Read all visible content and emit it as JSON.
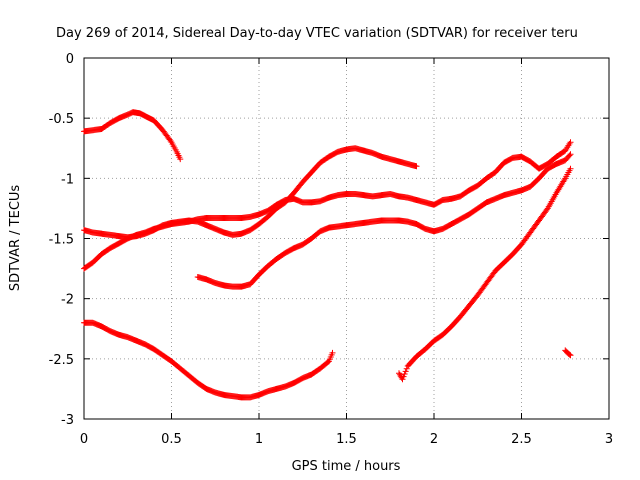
{
  "chart_data": {
    "type": "scatter",
    "title": "Day 269 of 2014, Sidereal Day-to-day VTEC variation (SDTVAR) for receiver teru",
    "xlabel": "GPS time / hours",
    "ylabel": "SDTVAR / TECUs",
    "xlim": [
      0,
      3
    ],
    "ylim": [
      -3,
      0
    ],
    "xticks": [
      "0",
      "0.5",
      "1",
      "1.5",
      "2",
      "2.5",
      "3"
    ],
    "yticks": [
      "0",
      "-0.5",
      "-1",
      "-1.5",
      "-2",
      "-2.5",
      "-3"
    ],
    "grid": true,
    "marker": "+",
    "color": "#ff0000",
    "series": [
      {
        "segments": [
          [
            [
              0.0,
              -0.61
            ],
            [
              0.05,
              -0.6
            ],
            [
              0.1,
              -0.59
            ],
            [
              0.15,
              -0.54
            ],
            [
              0.2,
              -0.5
            ],
            [
              0.25,
              -0.47
            ],
            [
              0.28,
              -0.45
            ],
            [
              0.32,
              -0.46
            ],
            [
              0.36,
              -0.49
            ],
            [
              0.4,
              -0.52
            ],
            [
              0.45,
              -0.6
            ],
            [
              0.5,
              -0.7
            ],
            [
              0.53,
              -0.78
            ],
            [
              0.55,
              -0.84
            ]
          ]
        ]
      },
      {
        "segments": [
          [
            [
              0.0,
              -1.43
            ],
            [
              0.05,
              -1.45
            ],
            [
              0.1,
              -1.46
            ],
            [
              0.15,
              -1.47
            ],
            [
              0.2,
              -1.48
            ],
            [
              0.25,
              -1.49
            ],
            [
              0.3,
              -1.48
            ],
            [
              0.35,
              -1.46
            ],
            [
              0.4,
              -1.43
            ],
            [
              0.45,
              -1.39
            ],
            [
              0.5,
              -1.37
            ],
            [
              0.55,
              -1.36
            ],
            [
              0.6,
              -1.35
            ],
            [
              0.65,
              -1.36
            ],
            [
              0.7,
              -1.39
            ],
            [
              0.75,
              -1.42
            ],
            [
              0.8,
              -1.45
            ],
            [
              0.85,
              -1.47
            ],
            [
              0.9,
              -1.46
            ],
            [
              0.95,
              -1.43
            ],
            [
              1.0,
              -1.38
            ],
            [
              1.05,
              -1.32
            ],
            [
              1.1,
              -1.25
            ],
            [
              1.15,
              -1.2
            ],
            [
              1.2,
              -1.12
            ],
            [
              1.25,
              -1.03
            ],
            [
              1.3,
              -0.95
            ],
            [
              1.35,
              -0.87
            ],
            [
              1.4,
              -0.82
            ],
            [
              1.45,
              -0.78
            ],
            [
              1.5,
              -0.76
            ],
            [
              1.55,
              -0.75
            ],
            [
              1.6,
              -0.77
            ],
            [
              1.65,
              -0.79
            ],
            [
              1.7,
              -0.82
            ],
            [
              1.75,
              -0.84
            ],
            [
              1.8,
              -0.86
            ],
            [
              1.85,
              -0.88
            ],
            [
              1.9,
              -0.9
            ]
          ]
        ]
      },
      {
        "segments": [
          [
            [
              0.0,
              -1.75
            ],
            [
              0.05,
              -1.7
            ],
            [
              0.1,
              -1.63
            ],
            [
              0.15,
              -1.58
            ],
            [
              0.2,
              -1.54
            ],
            [
              0.25,
              -1.5
            ],
            [
              0.3,
              -1.47
            ],
            [
              0.35,
              -1.45
            ],
            [
              0.4,
              -1.42
            ],
            [
              0.45,
              -1.4
            ],
            [
              0.5,
              -1.38
            ],
            [
              0.55,
              -1.37
            ],
            [
              0.6,
              -1.36
            ],
            [
              0.65,
              -1.34
            ],
            [
              0.7,
              -1.33
            ],
            [
              0.75,
              -1.33
            ],
            [
              0.8,
              -1.33
            ],
            [
              0.85,
              -1.33
            ],
            [
              0.9,
              -1.33
            ],
            [
              0.95,
              -1.32
            ],
            [
              1.0,
              -1.3
            ],
            [
              1.05,
              -1.27
            ],
            [
              1.1,
              -1.22
            ],
            [
              1.15,
              -1.18
            ],
            [
              1.2,
              -1.17
            ],
            [
              1.25,
              -1.2
            ],
            [
              1.3,
              -1.2
            ],
            [
              1.35,
              -1.19
            ],
            [
              1.4,
              -1.16
            ],
            [
              1.45,
              -1.14
            ],
            [
              1.5,
              -1.13
            ],
            [
              1.55,
              -1.13
            ],
            [
              1.6,
              -1.14
            ],
            [
              1.65,
              -1.15
            ],
            [
              1.7,
              -1.14
            ],
            [
              1.75,
              -1.13
            ],
            [
              1.8,
              -1.15
            ],
            [
              1.85,
              -1.16
            ],
            [
              1.9,
              -1.18
            ],
            [
              1.95,
              -1.2
            ],
            [
              2.0,
              -1.22
            ],
            [
              2.05,
              -1.18
            ],
            [
              2.1,
              -1.17
            ],
            [
              2.15,
              -1.15
            ],
            [
              2.2,
              -1.1
            ],
            [
              2.25,
              -1.06
            ],
            [
              2.3,
              -1.0
            ],
            [
              2.35,
              -0.95
            ],
            [
              2.4,
              -0.87
            ],
            [
              2.45,
              -0.83
            ],
            [
              2.5,
              -0.82
            ],
            [
              2.55,
              -0.86
            ],
            [
              2.6,
              -0.92
            ],
            [
              2.65,
              -0.88
            ],
            [
              2.7,
              -0.82
            ],
            [
              2.75,
              -0.77
            ],
            [
              2.78,
              -0.7
            ]
          ]
        ]
      },
      {
        "segments": [
          [
            [
              0.65,
              -1.82
            ],
            [
              0.7,
              -1.84
            ],
            [
              0.75,
              -1.87
            ],
            [
              0.8,
              -1.89
            ],
            [
              0.85,
              -1.9
            ],
            [
              0.9,
              -1.9
            ],
            [
              0.95,
              -1.88
            ],
            [
              1.0,
              -1.8
            ],
            [
              1.05,
              -1.73
            ],
            [
              1.1,
              -1.67
            ],
            [
              1.15,
              -1.62
            ],
            [
              1.2,
              -1.58
            ],
            [
              1.25,
              -1.55
            ],
            [
              1.3,
              -1.5
            ],
            [
              1.35,
              -1.44
            ],
            [
              1.4,
              -1.41
            ],
            [
              1.45,
              -1.4
            ],
            [
              1.5,
              -1.39
            ],
            [
              1.55,
              -1.38
            ],
            [
              1.6,
              -1.37
            ],
            [
              1.65,
              -1.36
            ],
            [
              1.7,
              -1.35
            ],
            [
              1.75,
              -1.35
            ],
            [
              1.8,
              -1.35
            ],
            [
              1.85,
              -1.36
            ],
            [
              1.9,
              -1.38
            ],
            [
              1.95,
              -1.42
            ],
            [
              2.0,
              -1.44
            ],
            [
              2.05,
              -1.42
            ],
            [
              2.1,
              -1.38
            ],
            [
              2.15,
              -1.34
            ],
            [
              2.2,
              -1.3
            ],
            [
              2.25,
              -1.25
            ],
            [
              2.3,
              -1.2
            ],
            [
              2.35,
              -1.17
            ],
            [
              2.4,
              -1.14
            ],
            [
              2.45,
              -1.12
            ],
            [
              2.5,
              -1.1
            ],
            [
              2.55,
              -1.07
            ],
            [
              2.6,
              -1.0
            ],
            [
              2.65,
              -0.92
            ],
            [
              2.7,
              -0.88
            ],
            [
              2.75,
              -0.85
            ],
            [
              2.78,
              -0.8
            ]
          ]
        ]
      },
      {
        "segments": [
          [
            [
              0.0,
              -2.2
            ],
            [
              0.05,
              -2.2
            ],
            [
              0.1,
              -2.23
            ],
            [
              0.15,
              -2.27
            ],
            [
              0.2,
              -2.3
            ],
            [
              0.25,
              -2.32
            ],
            [
              0.3,
              -2.35
            ],
            [
              0.35,
              -2.38
            ],
            [
              0.4,
              -2.42
            ],
            [
              0.45,
              -2.47
            ],
            [
              0.5,
              -2.52
            ],
            [
              0.55,
              -2.58
            ],
            [
              0.6,
              -2.64
            ],
            [
              0.65,
              -2.7
            ],
            [
              0.7,
              -2.75
            ],
            [
              0.75,
              -2.78
            ],
            [
              0.8,
              -2.8
            ],
            [
              0.85,
              -2.81
            ],
            [
              0.9,
              -2.82
            ],
            [
              0.95,
              -2.82
            ],
            [
              1.0,
              -2.8
            ],
            [
              1.05,
              -2.77
            ],
            [
              1.1,
              -2.75
            ],
            [
              1.15,
              -2.73
            ],
            [
              1.2,
              -2.7
            ],
            [
              1.25,
              -2.66
            ],
            [
              1.3,
              -2.63
            ],
            [
              1.35,
              -2.58
            ],
            [
              1.4,
              -2.52
            ],
            [
              1.42,
              -2.45
            ]
          ],
          [
            [
              1.8,
              -2.62
            ],
            [
              1.82,
              -2.67
            ],
            [
              1.85,
              -2.56
            ],
            [
              1.9,
              -2.48
            ],
            [
              1.95,
              -2.42
            ],
            [
              2.0,
              -2.35
            ],
            [
              2.05,
              -2.3
            ],
            [
              2.1,
              -2.23
            ],
            [
              2.15,
              -2.15
            ],
            [
              2.2,
              -2.06
            ],
            [
              2.25,
              -1.97
            ],
            [
              2.3,
              -1.87
            ],
            [
              2.35,
              -1.77
            ],
            [
              2.4,
              -1.7
            ],
            [
              2.45,
              -1.63
            ],
            [
              2.5,
              -1.55
            ],
            [
              2.55,
              -1.45
            ],
            [
              2.6,
              -1.35
            ],
            [
              2.65,
              -1.25
            ],
            [
              2.7,
              -1.12
            ],
            [
              2.75,
              -1.0
            ],
            [
              2.78,
              -0.92
            ]
          ],
          [
            [
              2.75,
              -2.43
            ],
            [
              2.77,
              -2.46
            ],
            [
              2.78,
              -2.47
            ]
          ]
        ]
      }
    ]
  }
}
